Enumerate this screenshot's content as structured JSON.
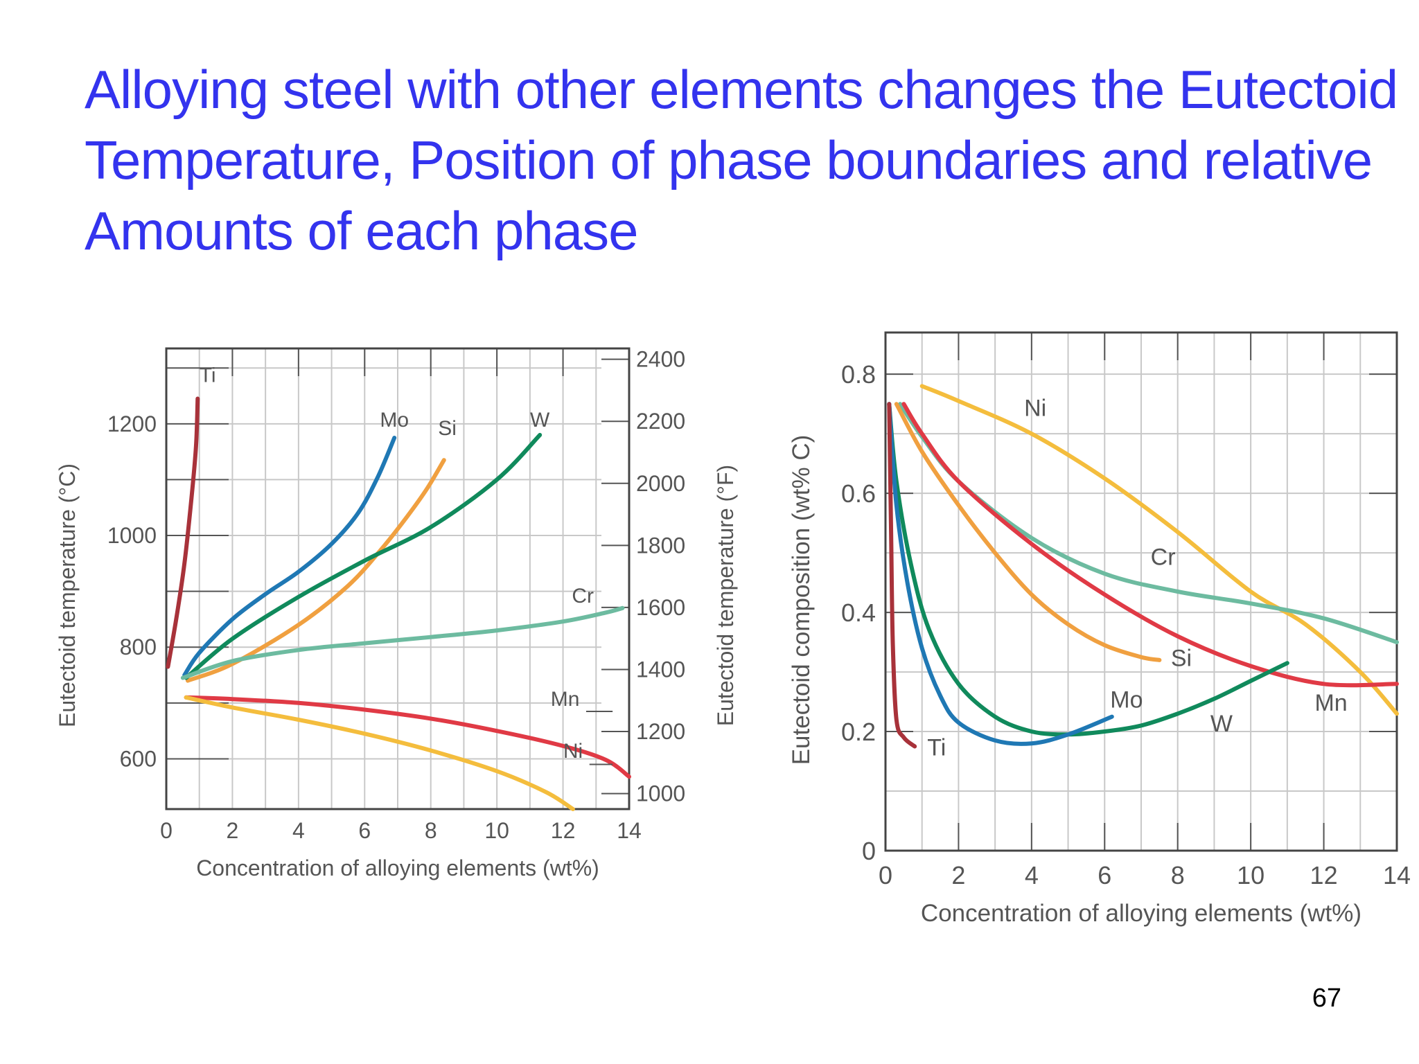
{
  "slide": {
    "title_lines": [
      "Alloying steel with other elements changes the Eutectoid",
      "Temperature, Position of phase boundaries and relative",
      "Amounts of each phase"
    ],
    "page_number": "67"
  },
  "colors": {
    "title": "#3333ee",
    "Ti": "#a8323a",
    "Mo": "#1f78b4",
    "Si": "#f0a040",
    "W": "#108a5c",
    "Cr": "#6dbba0",
    "Mn": "#e03a45",
    "Ni": "#f4bd3d"
  },
  "chart_data": [
    {
      "type": "line",
      "xlabel": "Concentration of alloying elements (wt%)",
      "ylabel": "Eutectoid temperature (°C)",
      "ylabel_right": "Eutectoid temperature (°F)",
      "xlim": [
        0,
        14
      ],
      "ylim": [
        510,
        1335
      ],
      "xticks": [
        "0",
        "2",
        "4",
        "6",
        "8",
        "10",
        "12",
        "14"
      ],
      "yticks_left": [
        "600",
        "800",
        "1000",
        "1200"
      ],
      "yticks_right": [
        "1000",
        "1200",
        "1400",
        "1600",
        "1800",
        "2000",
        "2200",
        "2400"
      ],
      "grid": true,
      "series": [
        {
          "name": "Ti",
          "x": [
            0.05,
            0.3,
            0.55,
            0.75,
            0.9,
            0.95
          ],
          "y": [
            765,
            850,
            950,
            1060,
            1160,
            1245
          ]
        },
        {
          "name": "Mo",
          "x": [
            0.55,
            1,
            2,
            3,
            4,
            5,
            5.8,
            6.4,
            6.9
          ],
          "y": [
            750,
            790,
            850,
            895,
            935,
            985,
            1040,
            1105,
            1175
          ]
        },
        {
          "name": "Si",
          "x": [
            0.65,
            2,
            4,
            5.5,
            6.5,
            7.3,
            7.9,
            8.4
          ],
          "y": [
            740,
            770,
            840,
            910,
            975,
            1035,
            1085,
            1135
          ]
        },
        {
          "name": "W",
          "x": [
            0.6,
            2,
            4,
            6,
            8,
            10,
            11.3
          ],
          "y": [
            745,
            815,
            890,
            955,
            1015,
            1100,
            1180
          ]
        },
        {
          "name": "Cr",
          "x": [
            0.5,
            2,
            4,
            6,
            8,
            10,
            12,
            13.3,
            13.8
          ],
          "y": [
            745,
            775,
            795,
            807,
            818,
            830,
            846,
            862,
            870
          ]
        },
        {
          "name": "Mn",
          "x": [
            0.6,
            2,
            4,
            6,
            8,
            10,
            12,
            13.3,
            14
          ],
          "y": [
            710,
            707,
            700,
            688,
            672,
            650,
            623,
            598,
            568
          ]
        },
        {
          "name": "Ni",
          "x": [
            0.6,
            2,
            4,
            6,
            8,
            10,
            11.5,
            12.3
          ],
          "y": [
            710,
            692,
            670,
            645,
            615,
            578,
            540,
            510
          ]
        }
      ],
      "annotations": [
        "Ti",
        "Mo",
        "Si",
        "W",
        "Cr",
        "Mn",
        "Ni"
      ]
    },
    {
      "type": "line",
      "xlabel": "Concentration of alloying elements (wt%)",
      "ylabel": "Eutectoid composition (wt% C)",
      "xlim": [
        0,
        14
      ],
      "ylim": [
        0,
        0.87
      ],
      "xticks": [
        "0",
        "2",
        "4",
        "6",
        "8",
        "10",
        "12",
        "14"
      ],
      "yticks": [
        "0",
        "0.2",
        "0.4",
        "0.6",
        "0.8"
      ],
      "grid": true,
      "series": [
        {
          "name": "Ni",
          "x": [
            1,
            2,
            4,
            6,
            8,
            10,
            11.5,
            13,
            14
          ],
          "y": [
            0.78,
            0.755,
            0.7,
            0.625,
            0.535,
            0.435,
            0.38,
            0.3,
            0.23
          ]
        },
        {
          "name": "Cr",
          "x": [
            0.4,
            1,
            2,
            4,
            6,
            8,
            10,
            12,
            14
          ],
          "y": [
            0.75,
            0.695,
            0.62,
            0.525,
            0.465,
            0.435,
            0.415,
            0.39,
            0.35
          ]
        },
        {
          "name": "Mn",
          "x": [
            0.5,
            1,
            2,
            4,
            6,
            8,
            10,
            12,
            14
          ],
          "y": [
            0.75,
            0.7,
            0.62,
            0.515,
            0.43,
            0.36,
            0.31,
            0.28,
            0.28
          ]
        },
        {
          "name": "Si",
          "x": [
            0.3,
            1,
            2,
            3,
            4,
            5,
            6,
            7,
            7.5
          ],
          "y": [
            0.75,
            0.67,
            0.58,
            0.5,
            0.43,
            0.38,
            0.345,
            0.325,
            0.32
          ]
        },
        {
          "name": "W",
          "x": [
            0.1,
            0.3,
            0.7,
            1.2,
            2,
            3,
            4,
            5,
            6,
            7,
            8,
            9,
            10,
            11
          ],
          "y": [
            0.75,
            0.62,
            0.48,
            0.37,
            0.28,
            0.225,
            0.2,
            0.195,
            0.2,
            0.21,
            0.23,
            0.255,
            0.285,
            0.315
          ]
        },
        {
          "name": "Mo",
          "x": [
            0.1,
            0.3,
            0.6,
            1,
            1.5,
            2,
            3,
            4,
            5,
            6.2
          ],
          "y": [
            0.75,
            0.58,
            0.45,
            0.34,
            0.26,
            0.215,
            0.185,
            0.18,
            0.195,
            0.225
          ]
        },
        {
          "name": "Ti",
          "x": [
            0.1,
            0.15,
            0.2,
            0.3,
            0.5,
            0.8
          ],
          "y": [
            0.75,
            0.55,
            0.35,
            0.22,
            0.19,
            0.175
          ]
        }
      ],
      "annotations": [
        "Ni",
        "Cr",
        "Si",
        "Mo",
        "W",
        "Mn",
        "Ti"
      ]
    }
  ]
}
